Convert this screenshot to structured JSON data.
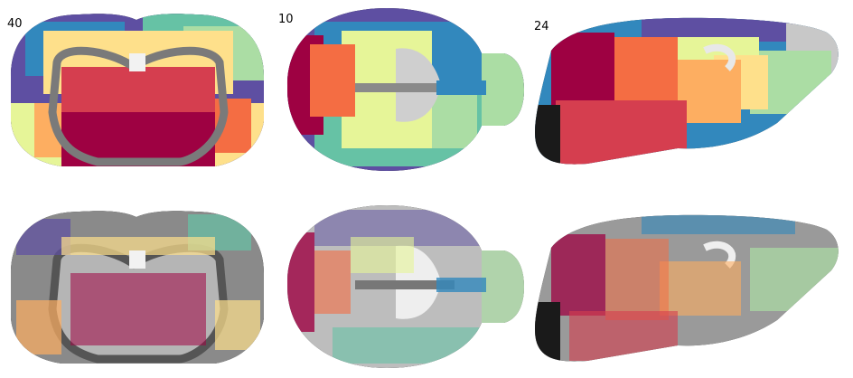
{
  "labels": {
    "coronal": "40",
    "axial": "10",
    "sagittal": "24"
  },
  "colors": {
    "background": "#ffffff",
    "crimson": "#9e0142",
    "red": "#d53e4f",
    "orange": "#f46d43",
    "light_orange": "#fdae61",
    "yellow": "#fee08b",
    "pale_yellow": "#e6f598",
    "light_green": "#abdda4",
    "teal": "#66c2a5",
    "blue": "#3288bd",
    "purple": "#5e4fa2",
    "gray_dark": "#2a2a2a",
    "gray_mid": "#8a8a8a",
    "gray_light": "#d6d6d6"
  },
  "panels": [
    {
      "view": "coronal",
      "row": "dense-parcellation"
    },
    {
      "view": "axial",
      "row": "dense-parcellation"
    },
    {
      "view": "sagittal",
      "row": "dense-parcellation"
    },
    {
      "view": "coronal",
      "row": "sparse-overlay"
    },
    {
      "view": "axial",
      "row": "sparse-overlay"
    },
    {
      "view": "sagittal",
      "row": "sparse-overlay"
    }
  ]
}
